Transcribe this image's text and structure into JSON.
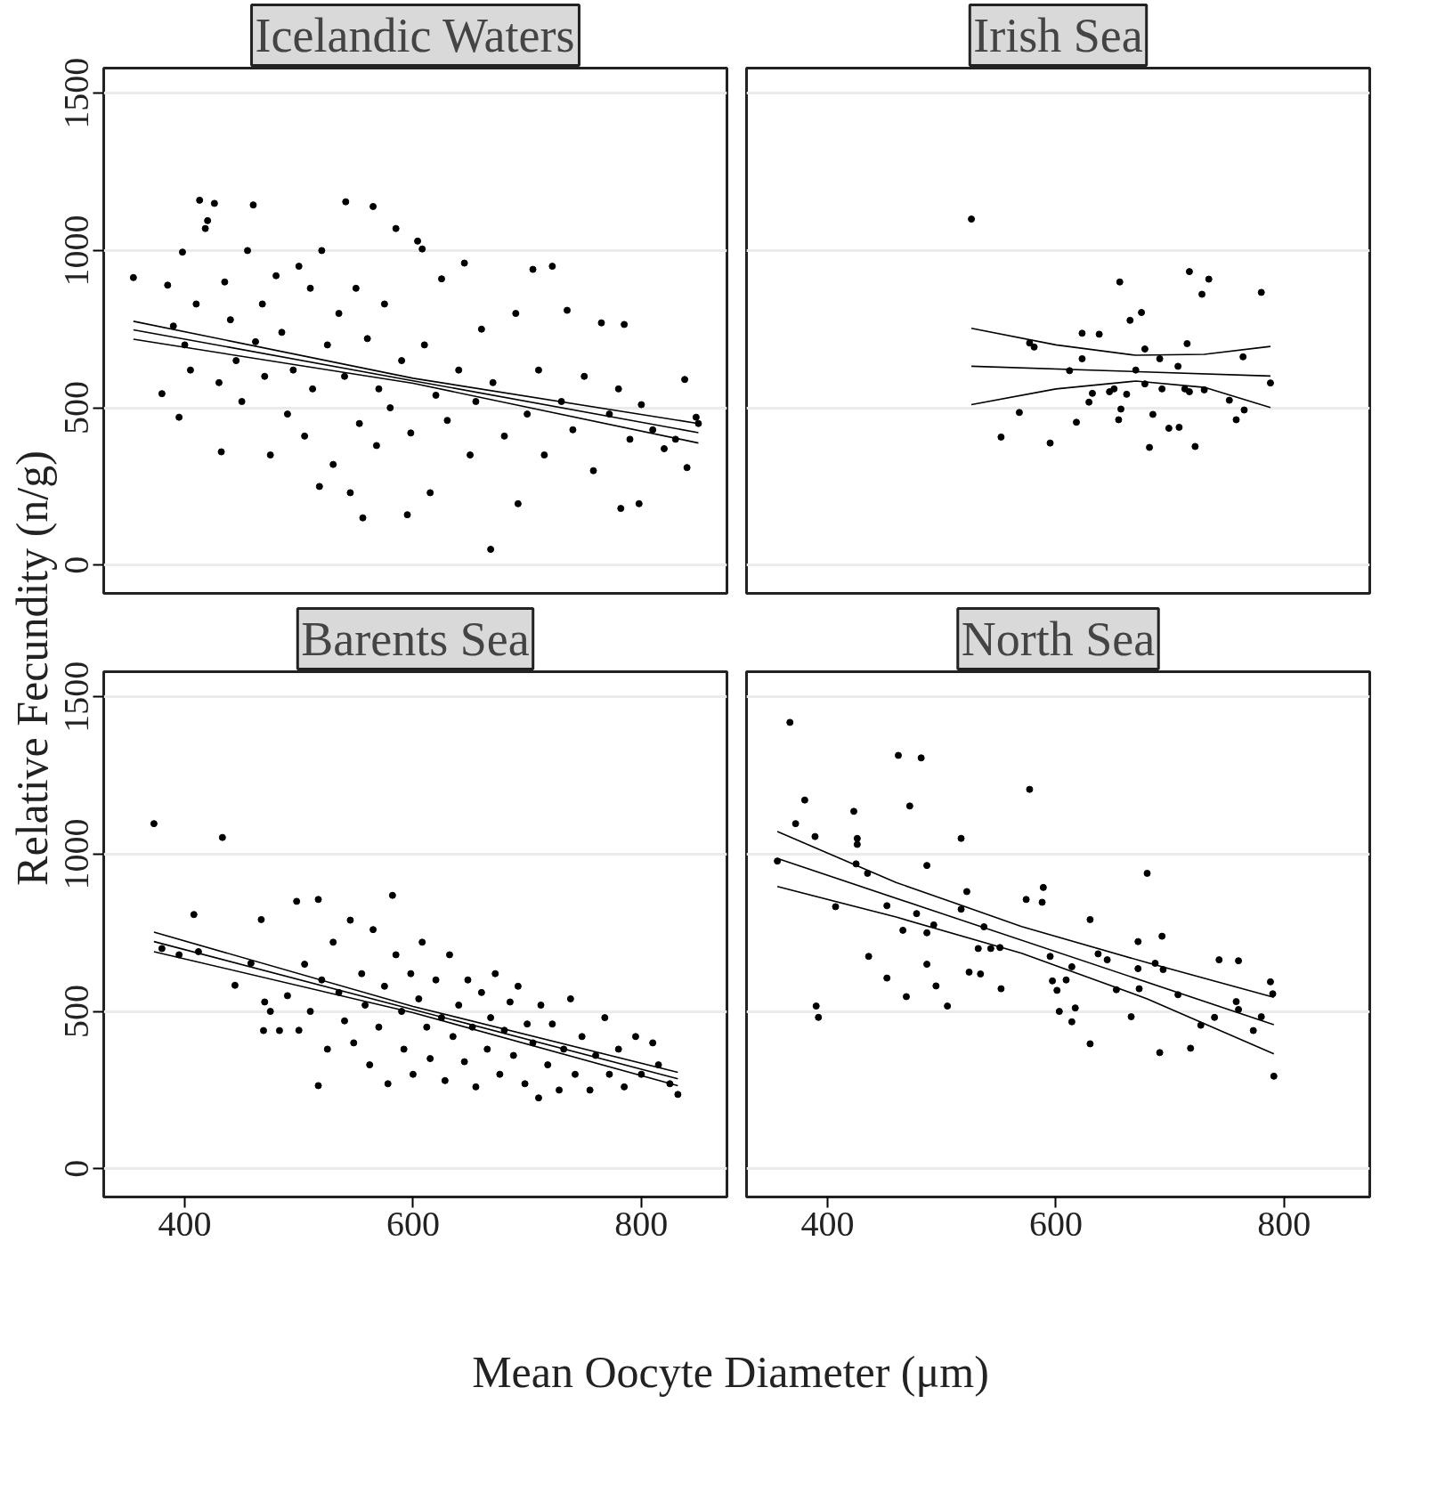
{
  "chart_data": [
    {
      "type": "scatter",
      "title": "Icelandic Waters",
      "ylabel": "Relative Fecundity (n/g)",
      "xlim": [
        329,
        875
      ],
      "ylim": [
        -90,
        1580
      ],
      "xticks": [
        400,
        600,
        800
      ],
      "yticks": [
        0,
        500,
        1000,
        1500
      ],
      "grid": "y",
      "tick_labels": "y",
      "series": [
        {
          "marker": "circle",
          "color": "#000000",
          "x": [
            355,
            380,
            385,
            390,
            395,
            398,
            400,
            405,
            410,
            413,
            418,
            420,
            426,
            430,
            432,
            435,
            440,
            445,
            450,
            455,
            460,
            462,
            468,
            470,
            475,
            480,
            485,
            490,
            495,
            500,
            505,
            510,
            512,
            518,
            520,
            525,
            530,
            535,
            540,
            541,
            545,
            550,
            553,
            556,
            560,
            565,
            568,
            570,
            575,
            580,
            585,
            590,
            595,
            598,
            604,
            608,
            610,
            615,
            620,
            625,
            630,
            640,
            645,
            650,
            655,
            660,
            668,
            670,
            680,
            690,
            692,
            700,
            705,
            710,
            715,
            722,
            730,
            735,
            740,
            750,
            758,
            765,
            772,
            780,
            782,
            785,
            790,
            798,
            800,
            810,
            820,
            830,
            838,
            840,
            848,
            850
          ],
          "values": [
            914,
            545,
            890,
            760,
            470,
            995,
            700,
            620,
            830,
            1160,
            1070,
            1095,
            1150,
            580,
            360,
            900,
            780,
            650,
            520,
            1000,
            1145,
            710,
            830,
            600,
            350,
            920,
            740,
            480,
            620,
            950,
            410,
            880,
            560,
            250,
            1000,
            700,
            320,
            800,
            600,
            1155,
            230,
            880,
            450,
            150,
            720,
            1140,
            380,
            560,
            830,
            500,
            1070,
            650,
            160,
            420,
            1030,
            1005,
            700,
            230,
            540,
            910,
            460,
            620,
            960,
            350,
            520,
            750,
            50,
            580,
            410,
            800,
            195,
            480,
            940,
            620,
            350,
            950,
            520,
            810,
            430,
            600,
            300,
            770,
            480,
            560,
            180,
            765,
            400,
            195,
            510,
            430,
            370,
            400,
            590,
            310,
            470,
            450
          ]
        },
        {
          "type": "line",
          "color": "#000000",
          "x": [
            355,
            600,
            850
          ],
          "values": [
            748,
            586,
            421
          ]
        },
        {
          "type": "line",
          "color": "#000000",
          "x": [
            355,
            600,
            850
          ],
          "values": [
            775,
            594,
            450
          ]
        },
        {
          "type": "line",
          "color": "#000000",
          "x": [
            355,
            600,
            850
          ],
          "values": [
            718,
            578,
            388
          ]
        }
      ]
    },
    {
      "type": "scatter",
      "title": "Irish Sea",
      "xlim": [
        329,
        875
      ],
      "ylim": [
        -90,
        1580
      ],
      "xticks": [
        400,
        600,
        800
      ],
      "yticks": [
        0,
        500,
        1000,
        1500
      ],
      "grid": "y",
      "tick_labels": false,
      "series": [
        {
          "marker": "circle",
          "color": "#000000",
          "x": [
            526,
            552,
            568,
            577,
            581,
            595,
            612,
            618,
            623,
            623,
            629,
            632,
            638,
            647,
            651,
            656,
            655,
            657,
            662,
            665,
            670,
            675,
            678,
            678,
            682,
            685,
            691,
            693,
            699,
            707,
            708,
            713,
            717,
            715,
            717,
            722,
            728,
            730,
            734,
            752,
            758,
            764,
            765,
            780,
            788
          ],
          "values": [
            1100,
            407,
            485,
            706,
            693,
            388,
            618,
            454,
            656,
            737,
            518,
            546,
            734,
            551,
            560,
            900,
            462,
            496,
            543,
            778,
            620,
            803,
            687,
            576,
            374,
            479,
            656,
            560,
            435,
            632,
            438,
            560,
            933,
            704,
            551,
            377,
            861,
            557,
            909,
            524,
            462,
            662,
            493,
            867,
            579
          ]
        },
        {
          "type": "line",
          "color": "#000000",
          "x": [
            526,
            788
          ],
          "values": [
            632,
            601
          ]
        },
        {
          "type": "line",
          "color": "#000000",
          "x": [
            526,
            600,
            670,
            730,
            788
          ],
          "values": [
            753,
            700,
            667,
            670,
            695
          ]
        },
        {
          "type": "line",
          "color": "#000000",
          "x": [
            526,
            600,
            670,
            730,
            788
          ],
          "values": [
            510,
            560,
            585,
            565,
            501
          ]
        }
      ]
    },
    {
      "type": "scatter",
      "title": "Barents Sea",
      "xlabel": "Mean Oocyte Diameter (μm)",
      "xlim": [
        329,
        875
      ],
      "ylim": [
        -90,
        1580
      ],
      "xticks": [
        400,
        600,
        800
      ],
      "yticks": [
        0,
        500,
        1000,
        1500
      ],
      "grid": "y",
      "series": [
        {
          "marker": "circle",
          "color": "#000000",
          "x": [
            373,
            380,
            395,
            408,
            412,
            433,
            444,
            458,
            467,
            469,
            470,
            475,
            483,
            490,
            498,
            500,
            505,
            510,
            517,
            517,
            520,
            525,
            530,
            535,
            540,
            545,
            548,
            555,
            558,
            562,
            565,
            570,
            575,
            578,
            582,
            585,
            590,
            592,
            598,
            600,
            605,
            608,
            612,
            615,
            620,
            625,
            628,
            632,
            635,
            640,
            645,
            648,
            652,
            655,
            660,
            665,
            668,
            672,
            676,
            680,
            685,
            688,
            692,
            698,
            700,
            705,
            710,
            712,
            718,
            722,
            728,
            732,
            738,
            742,
            748,
            755,
            760,
            768,
            772,
            780,
            785,
            795,
            800,
            810,
            815,
            825,
            832
          ],
          "values": [
            1097,
            700,
            680,
            808,
            690,
            1053,
            583,
            653,
            792,
            439,
            530,
            500,
            439,
            550,
            850,
            440,
            650,
            500,
            856,
            264,
            600,
            380,
            720,
            560,
            470,
            790,
            400,
            620,
            520,
            330,
            760,
            450,
            580,
            270,
            869,
            680,
            500,
            380,
            620,
            300,
            540,
            720,
            450,
            350,
            600,
            480,
            280,
            680,
            420,
            520,
            340,
            600,
            450,
            260,
            560,
            380,
            480,
            620,
            300,
            440,
            530,
            360,
            580,
            270,
            460,
            400,
            225,
            520,
            330,
            460,
            250,
            380,
            540,
            300,
            420,
            250,
            360,
            480,
            300,
            380,
            260,
            420,
            300,
            400,
            330,
            270,
            236
          ]
        },
        {
          "type": "line",
          "color": "#000000",
          "x": [
            373,
            600,
            832
          ],
          "values": [
            722,
            506,
            286
          ]
        },
        {
          "type": "line",
          "color": "#000000",
          "x": [
            373,
            600,
            832
          ],
          "values": [
            752,
            516,
            306
          ]
        },
        {
          "type": "line",
          "color": "#000000",
          "x": [
            373,
            600,
            832
          ],
          "values": [
            690,
            496,
            264
          ]
        }
      ]
    },
    {
      "type": "scatter",
      "title": "North Sea",
      "xlim": [
        329,
        875
      ],
      "ylim": [
        -90,
        1580
      ],
      "xticks": [
        400,
        600,
        800
      ],
      "yticks": [
        0,
        500,
        1000,
        1500
      ],
      "grid": "y",
      "tick_labels": "x",
      "series": [
        {
          "marker": "circle",
          "color": "#000000",
          "x": [
            356,
            367,
            372,
            380,
            389,
            390,
            392,
            407,
            423,
            426,
            426,
            425,
            435,
            436,
            452,
            452,
            462,
            466,
            469,
            472,
            478,
            482,
            487,
            487,
            487,
            493,
            495,
            505,
            517,
            517,
            522,
            524,
            532,
            534,
            537,
            543,
            551,
            552,
            577,
            574,
            589,
            588,
            595,
            597,
            601,
            603,
            609,
            614,
            614,
            617,
            630,
            630,
            637,
            645,
            653,
            666,
            672,
            672,
            673,
            680,
            687,
            691,
            693,
            694,
            707,
            718,
            727,
            739,
            743,
            760,
            758,
            760,
            773,
            780,
            788,
            790,
            791
          ],
          "values": [
            978,
            1419,
            1097,
            1172,
            1056,
            517,
            481,
            833,
            1136,
            1050,
            1031,
            969,
            939,
            675,
            836,
            606,
            1314,
            758,
            547,
            1153,
            811,
            1306,
            964,
            750,
            650,
            775,
            581,
            517,
            1050,
            825,
            881,
            625,
            700,
            619,
            769,
            700,
            703,
            572,
            1206,
            856,
            894,
            847,
            675,
            597,
            567,
            500,
            600,
            642,
            467,
            511,
            792,
            397,
            683,
            664,
            569,
            483,
            722,
            636,
            572,
            939,
            653,
            369,
            739,
            633,
            553,
            383,
            456,
            481,
            664,
            661,
            531,
            506,
            439,
            483,
            594,
            556,
            294
          ]
        },
        {
          "type": "line",
          "color": "#000000",
          "x": [
            356,
            791
          ],
          "values": [
            986,
            458
          ]
        },
        {
          "type": "line",
          "color": "#000000",
          "x": [
            356,
            460,
            570,
            680,
            791
          ],
          "values": [
            1072,
            910,
            770,
            655,
            545
          ]
        },
        {
          "type": "line",
          "color": "#000000",
          "x": [
            356,
            460,
            570,
            680,
            791
          ],
          "values": [
            897,
            800,
            685,
            540,
            365
          ]
        }
      ]
    }
  ]
}
